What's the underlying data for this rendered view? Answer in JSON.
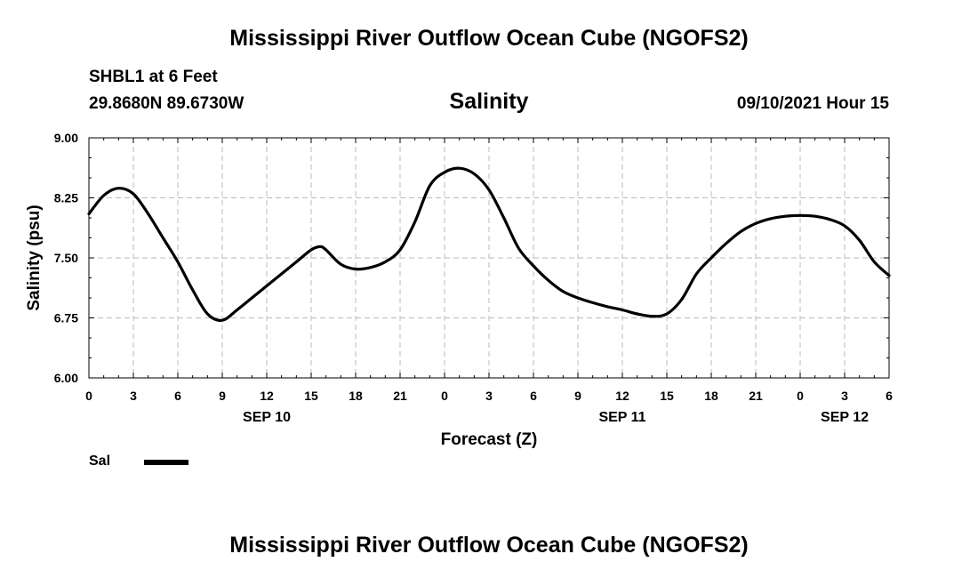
{
  "header": {
    "title": "Mississippi River Outflow Ocean Cube (NGOFS2)",
    "station": "SHBL1 at 6 Feet",
    "coords": "29.8680N  89.6730W",
    "variable": "Salinity",
    "timestamp": "09/10/2021 Hour 15"
  },
  "footer": {
    "title": "Mississippi River Outflow Ocean Cube (NGOFS2)"
  },
  "legend": {
    "label": "Sal"
  },
  "chart_data": {
    "type": "line",
    "title": "Salinity",
    "xlabel": "Forecast (Z)",
    "ylabel": "Salinity (psu)",
    "xlim": [
      0,
      54
    ],
    "ylim": [
      6.0,
      9.0
    ],
    "grid": true,
    "yticks": [
      "6.00",
      "6.75",
      "7.50",
      "8.25",
      "9.00"
    ],
    "ytick_values": [
      6.0,
      6.75,
      7.5,
      8.25,
      9.0
    ],
    "xtick_hours": [
      0,
      3,
      6,
      9,
      12,
      15,
      18,
      21,
      24,
      27,
      30,
      33,
      36,
      39,
      42,
      45,
      48,
      51,
      54
    ],
    "xtick_labels": [
      "0",
      "3",
      "6",
      "9",
      "12",
      "15",
      "18",
      "21",
      "0",
      "3",
      "6",
      "9",
      "12",
      "15",
      "18",
      "21",
      "0",
      "3",
      "6"
    ],
    "date_labels": [
      {
        "hour": 12,
        "text": "SEP 10"
      },
      {
        "hour": 36,
        "text": "SEP 11"
      },
      {
        "hour": 51,
        "text": "SEP 12"
      }
    ],
    "series": [
      {
        "name": "Sal",
        "color": "#000000",
        "x": [
          0,
          1,
          2,
          3,
          4,
          5,
          6,
          7,
          8,
          9,
          10,
          11,
          12,
          13,
          14,
          15,
          15.6,
          16,
          17,
          18,
          19,
          20,
          21,
          22,
          23,
          24,
          25,
          26,
          27,
          28,
          29,
          30,
          31,
          32,
          33,
          34,
          35,
          36,
          37,
          38,
          39,
          40,
          41,
          42,
          43,
          44,
          45,
          46,
          47,
          48,
          49,
          50,
          51,
          52,
          53,
          54
        ],
        "values": [
          8.05,
          8.28,
          8.37,
          8.3,
          8.05,
          7.75,
          7.45,
          7.1,
          6.8,
          6.72,
          6.85,
          7.0,
          7.15,
          7.3,
          7.45,
          7.6,
          7.64,
          7.6,
          7.42,
          7.36,
          7.38,
          7.45,
          7.6,
          7.95,
          8.4,
          8.57,
          8.62,
          8.55,
          8.35,
          8.0,
          7.62,
          7.4,
          7.22,
          7.08,
          7.0,
          6.94,
          6.89,
          6.85,
          6.8,
          6.77,
          6.8,
          6.98,
          7.3,
          7.5,
          7.68,
          7.83,
          7.93,
          7.99,
          8.02,
          8.03,
          8.02,
          7.98,
          7.9,
          7.72,
          7.45,
          7.28
        ]
      }
    ]
  }
}
